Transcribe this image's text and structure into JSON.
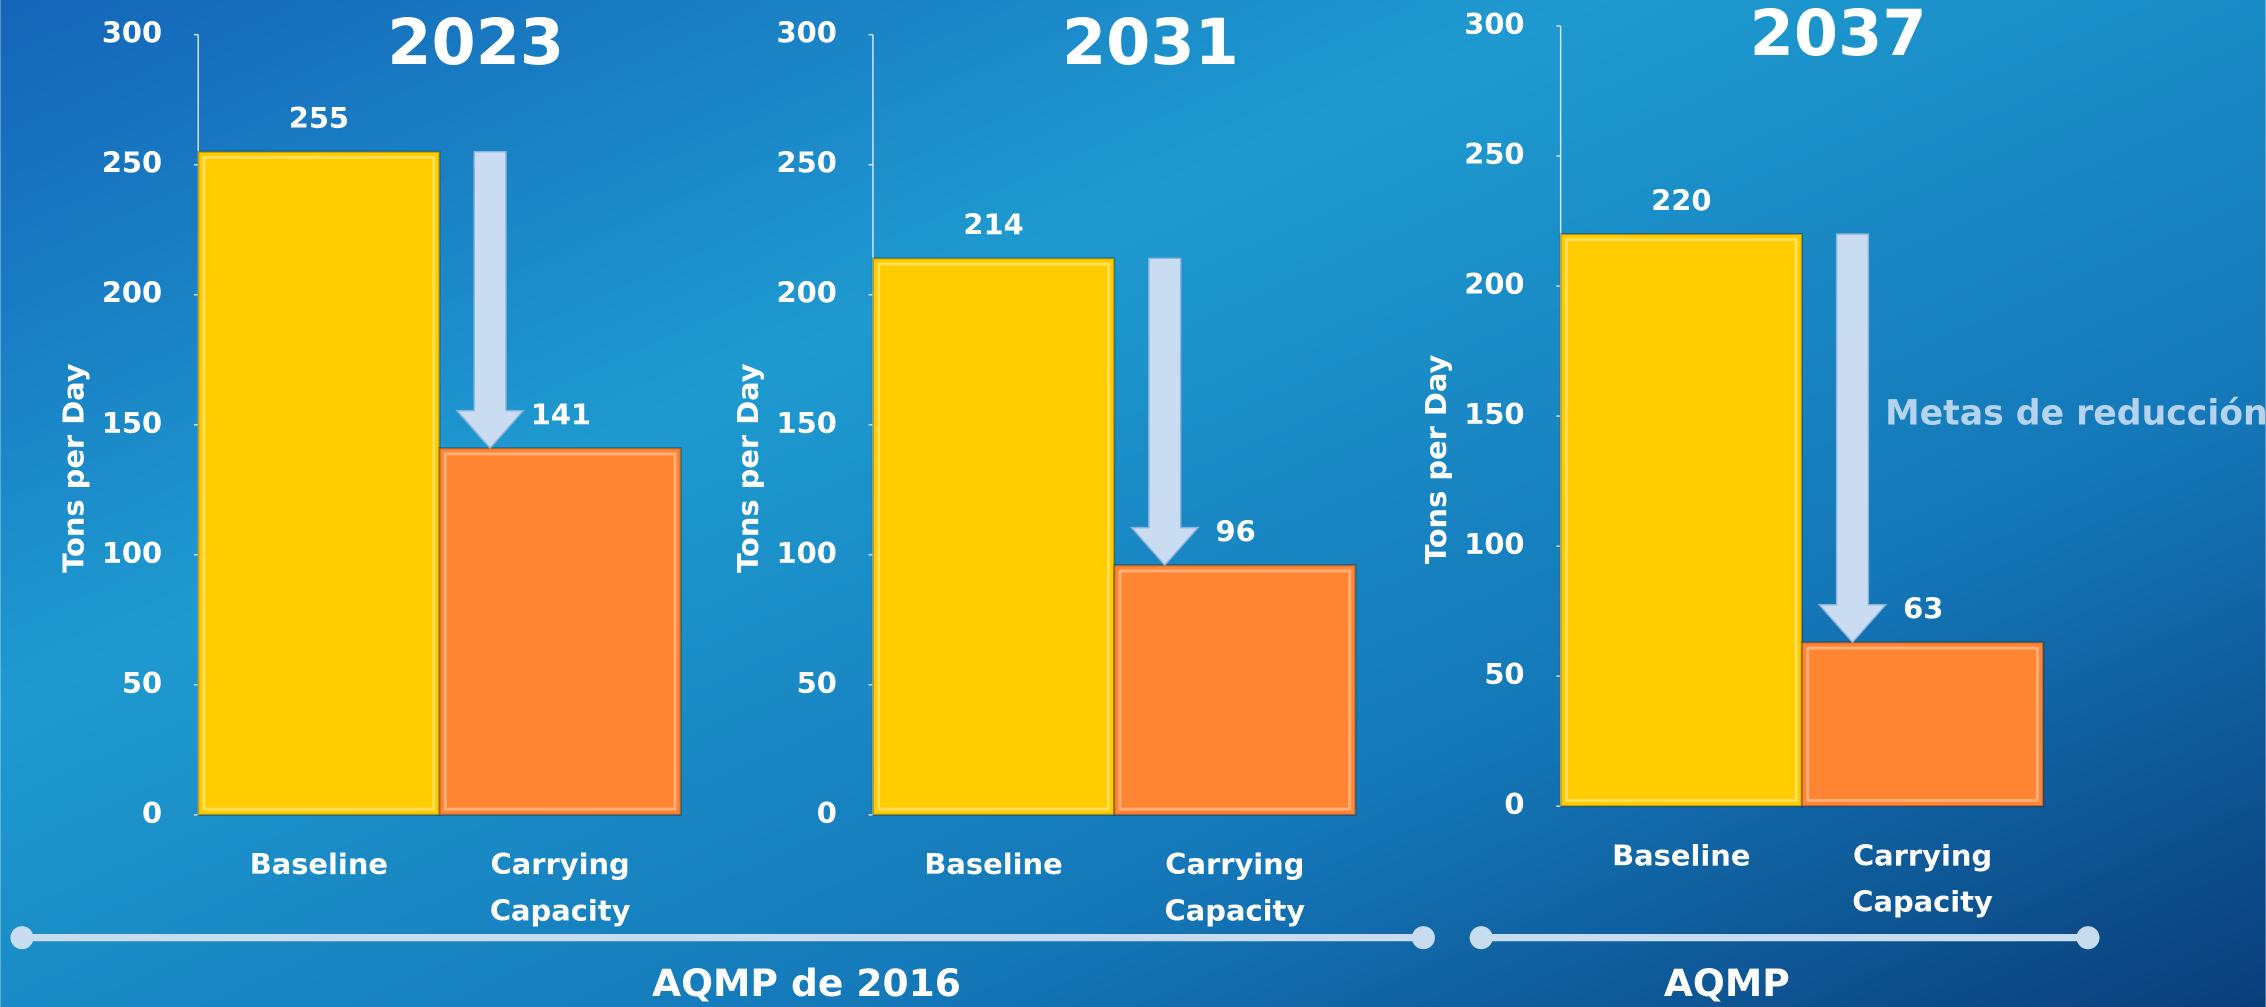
{
  "chart_data": [
    {
      "type": "bar",
      "title": "2023",
      "y_label": "Tons per Day",
      "categories": [
        "Baseline",
        "Carrying Capacity"
      ],
      "values": [
        255,
        141
      ],
      "colors": [
        "#ffcc00",
        "#ff8533"
      ],
      "ylim": [
        0,
        300
      ],
      "yticks": [
        0,
        50,
        100,
        150,
        200,
        250,
        300
      ]
    },
    {
      "type": "bar",
      "title": "2031",
      "y_label": "Tons per Day",
      "categories": [
        "Baseline",
        "Carrying Capacity"
      ],
      "values": [
        214,
        96
      ],
      "colors": [
        "#ffcc00",
        "#ff8533"
      ],
      "ylim": [
        0,
        300
      ],
      "yticks": [
        0,
        50,
        100,
        150,
        200,
        250,
        300
      ]
    },
    {
      "type": "bar",
      "title": "2037",
      "y_label": "Tons per Day",
      "categories": [
        "Baseline",
        "Carrying Capacity"
      ],
      "values": [
        220,
        63
      ],
      "colors": [
        "#ffcc00",
        "#ff8533"
      ],
      "ylim": [
        0,
        300
      ],
      "yticks": [
        0,
        50,
        100,
        150,
        200,
        250,
        300
      ]
    }
  ],
  "annotations": {
    "reduction_label": "Metas de reducción",
    "groups": [
      {
        "label": "AQMP de 2016"
      },
      {
        "label": "AQMP"
      }
    ]
  }
}
